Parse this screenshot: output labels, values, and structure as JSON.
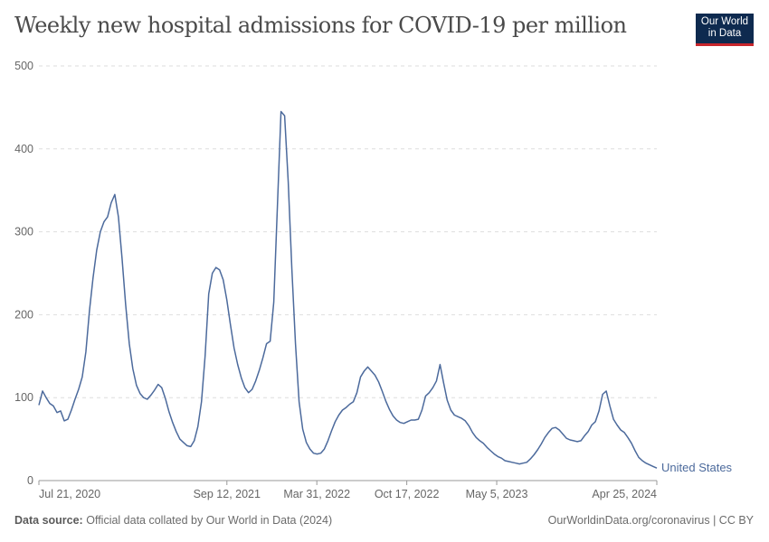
{
  "title": "Weekly new hospital admissions for COVID-19 per million",
  "logo": {
    "line1": "Our World",
    "line2": "in Data"
  },
  "footer": {
    "source_label": "Data source:",
    "source_text": "Official data collated by Our World in Data (2024)",
    "right": "OurWorldinData.org/coronavirus | CC BY"
  },
  "colors": {
    "series": "#4c6a9c",
    "grid": "#dddddd",
    "axis": "#999999"
  },
  "chart_data": {
    "type": "line",
    "title": "Weekly new hospital admissions for COVID-19 per million",
    "ylim": [
      0,
      500
    ],
    "yticks": [
      "0",
      "100",
      "200",
      "300",
      "400",
      "500"
    ],
    "xticks": [
      {
        "label": "Jul 21, 2020",
        "date": "2020-07-21"
      },
      {
        "label": "Sep 12, 2021",
        "date": "2021-09-12"
      },
      {
        "label": "Mar 31, 2022",
        "date": "2022-03-31"
      },
      {
        "label": "Oct 17, 2022",
        "date": "2022-10-17"
      },
      {
        "label": "May 5, 2023",
        "date": "2023-05-05"
      },
      {
        "label": "Apr 25, 2024",
        "date": "2024-04-25"
      }
    ],
    "grid": "horizontal dashed",
    "series": [
      {
        "name": "United States",
        "x_start": "2020-07-21",
        "x_end": "2024-04-25",
        "values": [
          91,
          108,
          100,
          93,
          90,
          82,
          84,
          72,
          74,
          85,
          98,
          110,
          125,
          155,
          205,
          245,
          278,
          300,
          312,
          318,
          335,
          345,
          318,
          268,
          212,
          165,
          135,
          115,
          105,
          100,
          98,
          103,
          109,
          116,
          112,
          99,
          83,
          70,
          59,
          50,
          46,
          42,
          41,
          48,
          65,
          95,
          150,
          225,
          250,
          257,
          254,
          242,
          218,
          188,
          160,
          140,
          124,
          112,
          106,
          110,
          120,
          133,
          148,
          165,
          168,
          215,
          330,
          445,
          440,
          360,
          255,
          165,
          95,
          62,
          46,
          38,
          33,
          32,
          33,
          38,
          48,
          60,
          71,
          79,
          85,
          88,
          92,
          95,
          106,
          125,
          132,
          137,
          132,
          127,
          119,
          108,
          96,
          86,
          78,
          73,
          70,
          69,
          71,
          73,
          73,
          74,
          85,
          102,
          106,
          112,
          120,
          140,
          118,
          97,
          85,
          79,
          77,
          75,
          72,
          66,
          58,
          52,
          48,
          45,
          40,
          36,
          32,
          29,
          27,
          24,
          23,
          22,
          21,
          20,
          21,
          22,
          26,
          31,
          37,
          44,
          52,
          58,
          63,
          64,
          61,
          56,
          51,
          49,
          48,
          47,
          48,
          54,
          59,
          67,
          71,
          84,
          104,
          108,
          90,
          74,
          67,
          61,
          58,
          52,
          45,
          36,
          28,
          24,
          21,
          19,
          17,
          15
        ]
      }
    ]
  }
}
